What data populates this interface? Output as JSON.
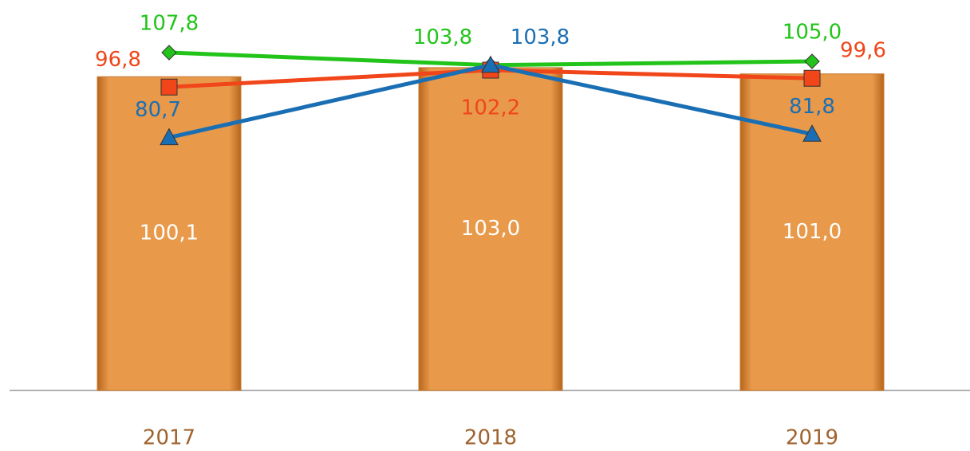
{
  "chart_data": {
    "type": "combo",
    "categories": [
      "2017",
      "2018",
      "2019"
    ],
    "ylim": [
      0,
      120
    ],
    "series": [
      {
        "type": "bar",
        "color": "#e8994a",
        "values": [
          100.1,
          103.0,
          101.0
        ],
        "value_labels": [
          "100,1",
          "103,0",
          "101,0"
        ]
      },
      {
        "type": "line",
        "marker": "diamond",
        "color": "#22c41a",
        "values": [
          107.8,
          103.8,
          105.0
        ],
        "value_labels": [
          "107,8",
          "103,8",
          "105,0"
        ]
      },
      {
        "type": "line",
        "marker": "square",
        "color": "#f0461a",
        "values": [
          96.8,
          102.2,
          99.6
        ],
        "value_labels": [
          "96,8",
          "102,2",
          "99,6"
        ]
      },
      {
        "type": "line",
        "marker": "triangle",
        "color": "#1a6fb4",
        "values": [
          80.7,
          103.8,
          81.8
        ],
        "value_labels": [
          "80,7",
          "103,8",
          "81,8"
        ]
      }
    ]
  }
}
